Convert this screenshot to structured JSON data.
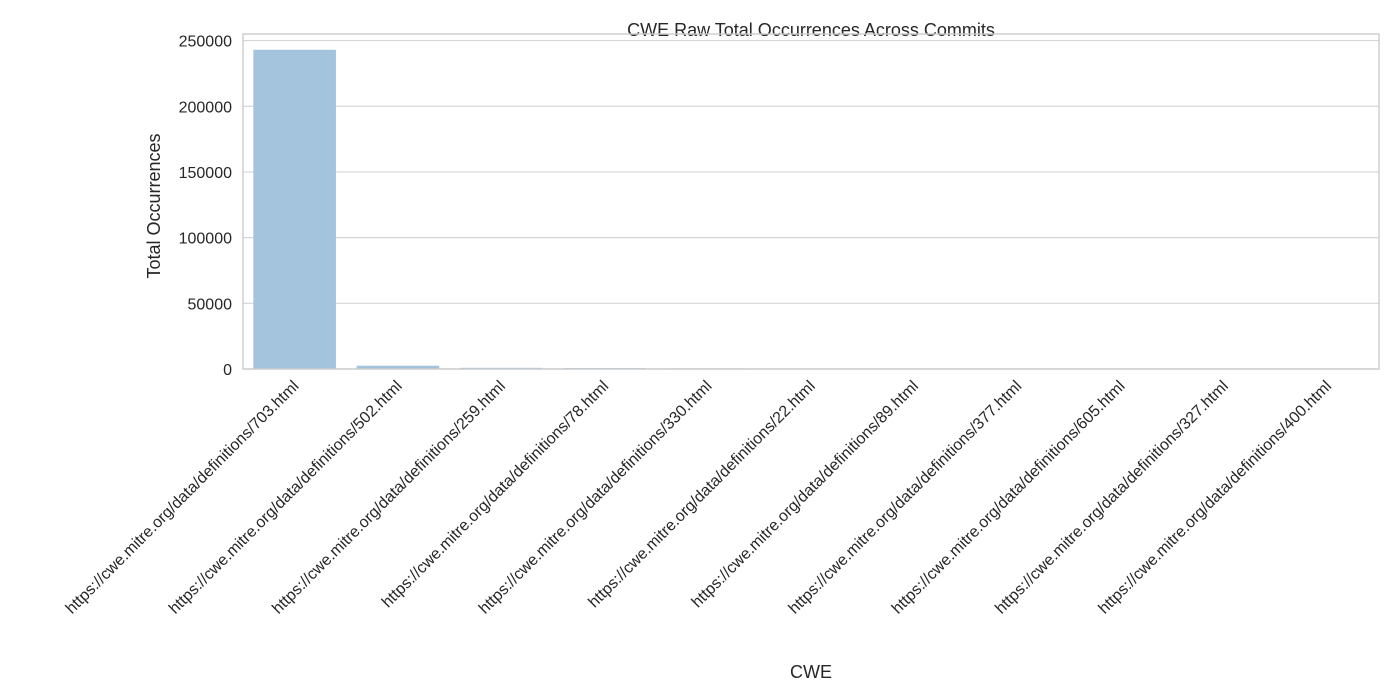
{
  "chart_data": {
    "type": "bar",
    "title": "CWE Raw Total Occurrences Across Commits",
    "xlabel": "CWE",
    "ylabel": "Total Occurrences",
    "categories": [
      "https://cwe.mitre.org/data/definitions/703.html",
      "https://cwe.mitre.org/data/definitions/502.html",
      "https://cwe.mitre.org/data/definitions/259.html",
      "https://cwe.mitre.org/data/definitions/78.html",
      "https://cwe.mitre.org/data/definitions/330.html",
      "https://cwe.mitre.org/data/definitions/22.html",
      "https://cwe.mitre.org/data/definitions/89.html",
      "https://cwe.mitre.org/data/definitions/377.html",
      "https://cwe.mitre.org/data/definitions/605.html",
      "https://cwe.mitre.org/data/definitions/327.html",
      "https://cwe.mitre.org/data/definitions/400.html"
    ],
    "values": [
      243000,
      2500,
      900,
      700,
      500,
      400,
      300,
      200,
      150,
      100,
      50
    ],
    "yticks": [
      0,
      50000,
      100000,
      150000,
      200000,
      250000
    ],
    "ytick_labels": [
      "0",
      "50000",
      "100000",
      "150000",
      "200000",
      "250000"
    ],
    "ylim": [
      0,
      255000
    ],
    "grid": "horizontal",
    "colors": {
      "bars": [
        "#a3c4dc",
        "#a3c4dc",
        "#a3c4dc",
        "#a3c4dc",
        "#a3c4dc",
        "#a3c4dc",
        "#a3c4dc",
        "#a3c4dc",
        "#a3c4dc",
        "#a3c4dc",
        "#a3c4dc"
      ],
      "grid": "#d6d6d6",
      "frame": "#cccccc",
      "text": "#262626"
    }
  }
}
